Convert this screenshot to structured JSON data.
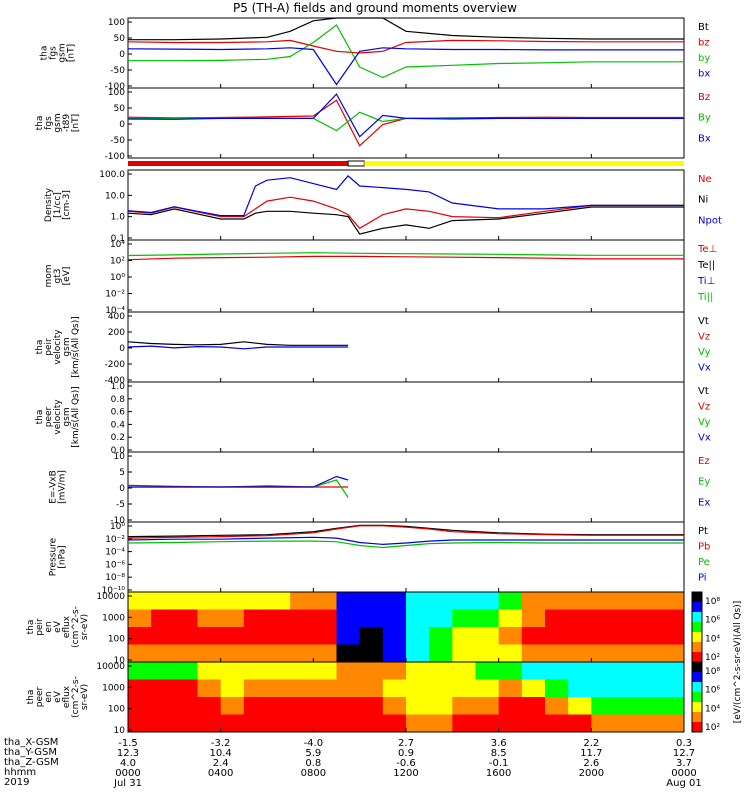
{
  "title": "P5 (TH-A) fields and ground moments overview",
  "chart_data": [
    {
      "type": "line",
      "ylabel": [
        "tha",
        "fgs",
        "gsm",
        "[nT]"
      ],
      "ylim": [
        -100,
        100
      ],
      "ticks": [
        "100",
        "50",
        "0",
        "-50",
        "-100"
      ],
      "legend": [
        {
          "name": "Bt",
          "color": "#000000"
        },
        {
          "name": "bz",
          "color": "#e00000"
        },
        {
          "name": "by",
          "color": "#00c000"
        },
        {
          "name": "bx",
          "color": "#0000e0"
        }
      ],
      "x": [
        0,
        2,
        4,
        6,
        7,
        8,
        9,
        10,
        11,
        12,
        14,
        16,
        18,
        20,
        22,
        24
      ],
      "series": [
        {
          "name": "Bt",
          "values": [
            38,
            38,
            40,
            45,
            62,
            92,
            100,
            100,
            100,
            62,
            50,
            45,
            42,
            40,
            40,
            40
          ]
        },
        {
          "name": "bz",
          "values": [
            32,
            30,
            30,
            32,
            36,
            20,
            5,
            0,
            5,
            30,
            36,
            35,
            33,
            32,
            32,
            32
          ]
        },
        {
          "name": "by",
          "values": [
            -22,
            -22,
            -21,
            -18,
            -10,
            30,
            80,
            -40,
            -70,
            -40,
            -35,
            -30,
            -28,
            -25,
            -25,
            -25
          ]
        },
        {
          "name": "bx",
          "values": [
            12,
            11,
            10,
            12,
            15,
            10,
            -90,
            5,
            15,
            12,
            10,
            10,
            9,
            9,
            9,
            9
          ]
        }
      ]
    },
    {
      "type": "line",
      "ylabel": [
        "tha",
        "fgs",
        "gsm",
        "-t89",
        "[nT]"
      ],
      "ylim": [
        -130,
        100
      ],
      "ticks": [
        "100",
        "50",
        "0",
        "-50",
        "-100"
      ],
      "legend": [
        {
          "name": "Bz",
          "color": "#e00000"
        },
        {
          "name": "By",
          "color": "#00c000"
        },
        {
          "name": "Bx",
          "color": "#0000e0"
        }
      ],
      "x": [
        0,
        2,
        4,
        6,
        8,
        9,
        10,
        11,
        12,
        14,
        16,
        18,
        20,
        22,
        24
      ],
      "series": [
        {
          "name": "Bz",
          "values": [
            4,
            2,
            3,
            5,
            8,
            60,
            -90,
            -20,
            0,
            2,
            3,
            4,
            3,
            3,
            3
          ]
        },
        {
          "name": "By",
          "values": [
            0,
            0,
            2,
            0,
            0,
            -40,
            20,
            -10,
            0,
            0,
            0,
            0,
            0,
            0,
            0
          ]
        },
        {
          "name": "Bx",
          "values": [
            -2,
            -3,
            0,
            0,
            0,
            80,
            -60,
            10,
            0,
            -2,
            0,
            0,
            0,
            0,
            0
          ]
        }
      ],
      "mode_bar": [
        {
          "from": 0,
          "to": 9.5,
          "color": "#e00000"
        },
        {
          "from": 9.5,
          "to": 10.2,
          "color": "#ffffff"
        },
        {
          "from": 10.2,
          "to": 24,
          "color": "#ffff00"
        }
      ]
    },
    {
      "type": "line",
      "scale": "log",
      "ylabel": [
        "Density",
        "[1/cc]",
        "[cm-3]"
      ],
      "ylim": [
        0.05,
        200
      ],
      "ticks": [
        "100.0",
        "10.0",
        "1.0",
        "0.1"
      ],
      "legend": [
        {
          "name": "Ne",
          "color": "#e00000"
        },
        {
          "name": "Ni",
          "color": "#000000"
        },
        {
          "name": "Npot",
          "color": "#0000e0"
        }
      ],
      "x": [
        0,
        1,
        2,
        3,
        4,
        5,
        5.5,
        6,
        7,
        8,
        9,
        9.5,
        10,
        11,
        12,
        13,
        14,
        16,
        18,
        20,
        22,
        24
      ],
      "series": [
        {
          "name": "Ne",
          "values": [
            1.5,
            1.2,
            2.5,
            1.4,
            0.8,
            0.8,
            2,
            5,
            8,
            5,
            2,
            1,
            0.2,
            1,
            2,
            1.5,
            0.8,
            0.7,
            1.5,
            3,
            3,
            3
          ]
        },
        {
          "name": "Ni",
          "values": [
            1.2,
            1.0,
            2.0,
            1.1,
            0.6,
            0.6,
            1.2,
            1.5,
            1.5,
            1.2,
            1.0,
            0.8,
            0.1,
            0.2,
            0.3,
            0.2,
            0.5,
            0.6,
            1.2,
            2.5,
            2.5,
            2.5
          ]
        },
        {
          "name": "Npot",
          "values": [
            1.6,
            1.3,
            2.6,
            1.5,
            0.9,
            0.9,
            30,
            60,
            80,
            40,
            20,
            100,
            30,
            25,
            20,
            15,
            4,
            2,
            2,
            3,
            3,
            3
          ]
        }
      ]
    },
    {
      "type": "line",
      "scale": "log",
      "ylabel": [
        "mom",
        "gt3",
        "[eV]"
      ],
      "ylim": [
        1e-05,
        200000
      ],
      "ticks": [
        "10⁴",
        "10²",
        "10⁰",
        "10⁻²",
        "10⁻⁴"
      ],
      "legend": [
        {
          "name": "Te⊥",
          "color": "#e00000"
        },
        {
          "name": "Te||",
          "color": "#000000"
        },
        {
          "name": "Ti⊥",
          "color": "#0000e0"
        },
        {
          "name": "Ti||",
          "color": "#00c000"
        }
      ],
      "x": [
        0,
        2,
        4,
        6,
        8,
        10,
        12,
        14,
        16,
        18,
        20,
        22,
        24
      ],
      "series": [
        {
          "name": "Te⊥",
          "values": [
            300,
            500,
            600,
            700,
            900,
            900,
            800,
            700,
            600,
            500,
            400,
            400,
            400
          ]
        },
        {
          "name": "Ti||",
          "values": [
            1200,
            1500,
            2000,
            2500,
            3000,
            2500,
            2200,
            2000,
            1800,
            1500,
            1300,
            1300,
            1300
          ]
        }
      ]
    },
    {
      "type": "line",
      "ylabel": [
        "tha",
        "peir",
        "velocity",
        "gsm",
        "[km/s(All Qs)]"
      ],
      "ylim": [
        -400,
        400
      ],
      "ticks": [
        "400",
        "200",
        "0",
        "-200",
        "-400"
      ],
      "legend": [
        {
          "name": "Vt",
          "color": "#000000"
        },
        {
          "name": "Vz",
          "color": "#e00000"
        },
        {
          "name": "Vy",
          "color": "#00c000"
        },
        {
          "name": "Vx",
          "color": "#0000e0"
        }
      ],
      "x": [
        0,
        1,
        2,
        3,
        4,
        5,
        6,
        7,
        8,
        9,
        9.5
      ],
      "series": [
        {
          "name": "Vt",
          "values": [
            60,
            40,
            30,
            25,
            30,
            60,
            30,
            20,
            20,
            20,
            20
          ]
        },
        {
          "name": "Vx",
          "values": [
            0,
            10,
            -10,
            5,
            0,
            -20,
            0,
            0,
            0,
            0,
            0
          ]
        }
      ]
    },
    {
      "type": "line",
      "ylabel": [
        "tha",
        "peer",
        "velocity",
        "gsm",
        "[km/s(All Qs)]"
      ],
      "ylim": [
        0,
        1
      ],
      "ticks": [
        "1.0",
        "0.8",
        "0.6",
        "0.4",
        "0.2",
        "0.0"
      ],
      "legend": [
        {
          "name": "Vt",
          "color": "#000000"
        },
        {
          "name": "Vz",
          "color": "#e00000"
        },
        {
          "name": "Vy",
          "color": "#00c000"
        },
        {
          "name": "Vx",
          "color": "#0000e0"
        }
      ],
      "x": [],
      "series": []
    },
    {
      "type": "line",
      "ylabel": [
        "E=-VxB",
        "[mV/m]"
      ],
      "ylim": [
        -10,
        10
      ],
      "ticks": [
        "10",
        "5",
        "0",
        "-5",
        "-10"
      ],
      "legend": [
        {
          "name": "Ez",
          "color": "#e00000"
        },
        {
          "name": "Ey",
          "color": "#00c000"
        },
        {
          "name": "Ex",
          "color": "#0000e0"
        }
      ],
      "x": [
        0,
        2,
        4,
        6,
        8,
        9,
        9.5
      ],
      "series": [
        {
          "name": "Ez",
          "values": [
            0.5,
            0.2,
            0,
            0.3,
            0,
            0,
            0
          ]
        },
        {
          "name": "Ey",
          "values": [
            0,
            0,
            0,
            0,
            0,
            2,
            -3
          ]
        },
        {
          "name": "Ex",
          "values": [
            0,
            0,
            0,
            0,
            0,
            3,
            2
          ]
        }
      ]
    },
    {
      "type": "line",
      "scale": "log",
      "ylabel": [
        "Pressure",
        "[nPa]"
      ],
      "ylim": [
        1e-10,
        10
      ],
      "ticks": [
        "10⁰",
        "10⁻²",
        "10⁻⁴",
        "10⁻⁶",
        "10⁻⁸",
        "10⁻¹⁰"
      ],
      "legend": [
        {
          "name": "Pt",
          "color": "#000000"
        },
        {
          "name": "Pb",
          "color": "#e00000"
        },
        {
          "name": "Pe",
          "color": "#00c000"
        },
        {
          "name": "Pi",
          "color": "#0000e0"
        }
      ],
      "x": [
        0,
        2,
        4,
        6,
        8,
        9,
        10,
        11,
        12,
        13,
        14,
        16,
        18,
        20,
        22,
        24
      ],
      "series": [
        {
          "name": "Pt",
          "values": [
            0.05,
            0.06,
            0.08,
            0.1,
            0.3,
            1,
            3,
            3,
            2,
            1,
            0.5,
            0.2,
            0.12,
            0.1,
            0.1,
            0.1
          ]
        },
        {
          "name": "Pb",
          "values": [
            0.03,
            0.04,
            0.05,
            0.07,
            0.2,
            0.8,
            2.5,
            2.5,
            1.5,
            0.8,
            0.3,
            0.15,
            0.1,
            0.08,
            0.08,
            0.08
          ]
        },
        {
          "name": "Pe",
          "values": [
            0.005,
            0.006,
            0.008,
            0.01,
            0.01,
            0.008,
            0.002,
            0.001,
            0.002,
            0.004,
            0.005,
            0.006,
            0.005,
            0.005,
            0.005,
            0.005
          ]
        },
        {
          "name": "Pi",
          "values": [
            0.015,
            0.02,
            0.02,
            0.03,
            0.04,
            0.03,
            0.006,
            0.003,
            0.005,
            0.01,
            0.015,
            0.015,
            0.015,
            0.015,
            0.015,
            0.015
          ]
        }
      ]
    },
    {
      "type": "heatmap",
      "ylabel": [
        "tha",
        "peir",
        "en",
        "eV",
        "eflux",
        "(cm^2-s-",
        "sr-eV)"
      ],
      "ylim": [
        5,
        25000
      ],
      "ticks": [
        "10000",
        "1000",
        "100",
        "10"
      ],
      "colorbar": {
        "label": "[eV/(cm^2-s-sr-eV)(All Qs)]",
        "ticks": [
          "10⁸",
          "10⁶",
          "10⁴",
          "10²"
        ],
        "colors": [
          "#ffffff",
          "#ff0000",
          "#ff8800",
          "#ffff00",
          "#00ff00",
          "#00ffff",
          "#0000ff",
          "#000000"
        ]
      },
      "intensity": [
        [
          3,
          3,
          3,
          3,
          3,
          3,
          3,
          2,
          2,
          6,
          6,
          6,
          5,
          5,
          5,
          5,
          4,
          2,
          2,
          2,
          2,
          2,
          2,
          2
        ],
        [
          2,
          1,
          1,
          2,
          2,
          1,
          1,
          1,
          1,
          6,
          6,
          6,
          5,
          5,
          4,
          4,
          3,
          2,
          1,
          1,
          1,
          1,
          1,
          1
        ],
        [
          1,
          1,
          1,
          1,
          1,
          1,
          1,
          1,
          1,
          6,
          7,
          6,
          5,
          4,
          3,
          3,
          2,
          1,
          1,
          1,
          1,
          1,
          1,
          1
        ],
        [
          2,
          2,
          2,
          2,
          2,
          2,
          2,
          2,
          2,
          7,
          7,
          6,
          5,
          4,
          3,
          3,
          3,
          2,
          2,
          2,
          2,
          2,
          2,
          2
        ]
      ]
    },
    {
      "type": "heatmap",
      "ylabel": [
        "tha",
        "peer",
        "en",
        "eV",
        "eflux",
        "(cm^2-s-",
        "sr-eV)"
      ],
      "ylim": [
        5,
        25000
      ],
      "ticks": [
        "10000",
        "1000",
        "100",
        "10"
      ],
      "colorbar": {
        "label": "[eV/(cm^2-s-sr-eV)(All Qs)]",
        "ticks": [
          "10⁸",
          "10⁶",
          "10⁴",
          "10²"
        ],
        "colors": [
          "#ffffff",
          "#ff0000",
          "#ff8800",
          "#ffff00",
          "#00ff00",
          "#00ffff",
          "#0000ff",
          "#000000"
        ]
      },
      "intensity": [
        [
          4,
          4,
          4,
          3,
          3,
          3,
          3,
          3,
          3,
          2,
          2,
          2,
          3,
          3,
          3,
          4,
          4,
          5,
          5,
          5,
          5,
          5,
          5,
          5
        ],
        [
          1,
          1,
          1,
          2,
          3,
          2,
          2,
          2,
          2,
          2,
          2,
          3,
          3,
          3,
          3,
          3,
          2,
          3,
          4,
          5,
          5,
          5,
          5,
          5
        ],
        [
          1,
          1,
          1,
          1,
          2,
          1,
          1,
          1,
          1,
          1,
          1,
          2,
          3,
          3,
          2,
          2,
          1,
          1,
          2,
          3,
          4,
          4,
          4,
          4
        ],
        [
          1,
          1,
          1,
          1,
          1,
          1,
          1,
          1,
          1,
          1,
          1,
          1,
          2,
          2,
          1,
          1,
          1,
          1,
          1,
          1,
          2,
          2,
          2,
          2
        ]
      ]
    }
  ],
  "footer": {
    "labels": [
      "tha_X-GSM",
      "tha_Y-GSM",
      "tha_Z-GSM",
      "hhmm",
      "2019"
    ],
    "columns": [
      {
        "x": 0,
        "values": [
          "-1.5",
          "12.3",
          "4.0",
          "0000",
          "Jul 31"
        ]
      },
      {
        "x": 4,
        "values": [
          "-3.2",
          "10.4",
          "2.4",
          "0400",
          ""
        ]
      },
      {
        "x": 8,
        "values": [
          "-4.0",
          "5.9",
          "0.8",
          "0800",
          ""
        ]
      },
      {
        "x": 12,
        "values": [
          "2.7",
          "0.9",
          "-0.6",
          "1200",
          ""
        ]
      },
      {
        "x": 16,
        "values": [
          "3.6",
          "8.5",
          "-0.1",
          "1600",
          ""
        ]
      },
      {
        "x": 20,
        "values": [
          "2.2",
          "11.7",
          "2.6",
          "2000",
          ""
        ]
      },
      {
        "x": 24,
        "values": [
          "0.3",
          "12.7",
          "3.7",
          "0000",
          "Aug 01"
        ]
      }
    ]
  }
}
